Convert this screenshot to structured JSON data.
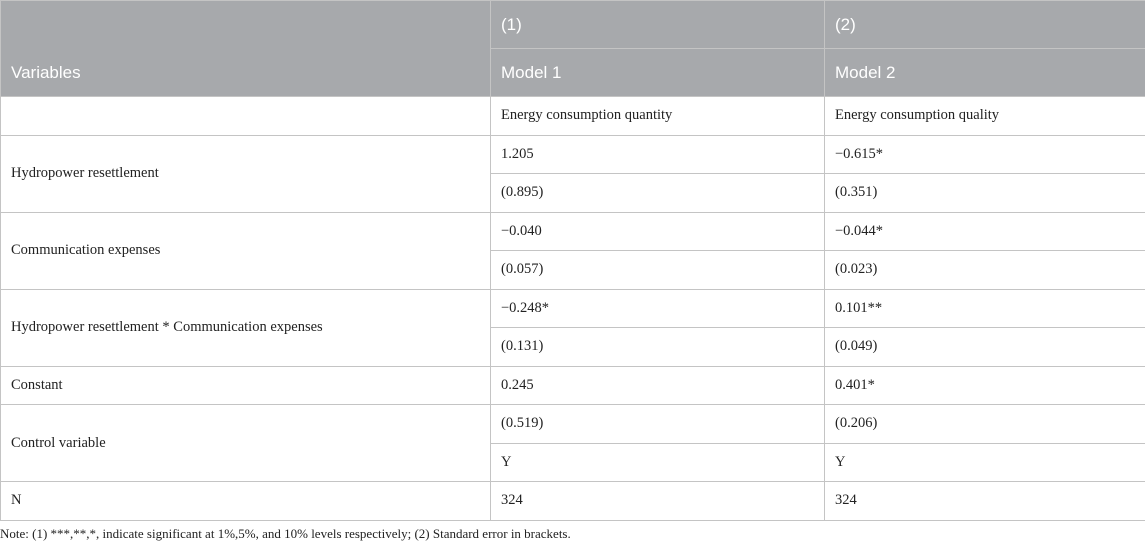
{
  "header": {
    "variables_label": "Variables",
    "col1_number": "(1)",
    "col2_number": "(2)",
    "col1_model": "Model 1",
    "col2_model": "Model 2"
  },
  "rows": {
    "dependent": {
      "label": "",
      "col1": "Energy consumption quantity",
      "col2": "Energy consumption quality"
    },
    "hydropower": {
      "label": "Hydropower resettlement",
      "col1": "1.205",
      "col2": "−0.615*",
      "col1_se": "(0.895)",
      "col2_se": "(0.351)"
    },
    "communication": {
      "label": "Communication expenses",
      "col1": "−0.040",
      "col2": "−0.044*",
      "col1_se": "(0.057)",
      "col2_se": "(0.023)"
    },
    "interaction": {
      "label": "Hydropower resettlement * Communication expenses",
      "col1": "−0.248*",
      "col2": "0.101**",
      "col1_se": "(0.131)",
      "col2_se": "(0.049)"
    },
    "constant": {
      "label": "Constant",
      "col1": "0.245",
      "col2": "0.401*"
    },
    "control": {
      "label": "Control variable",
      "col1": "(0.519)",
      "col2": "(0.206)",
      "col1_b": "Y",
      "col2_b": "Y"
    },
    "n": {
      "label": "N",
      "col1": "324",
      "col2": "324"
    }
  },
  "note": "Note: (1) ***,**,*, indicate significant at 1%,5%, and 10% levels respectively; (2) Standard error in brackets."
}
